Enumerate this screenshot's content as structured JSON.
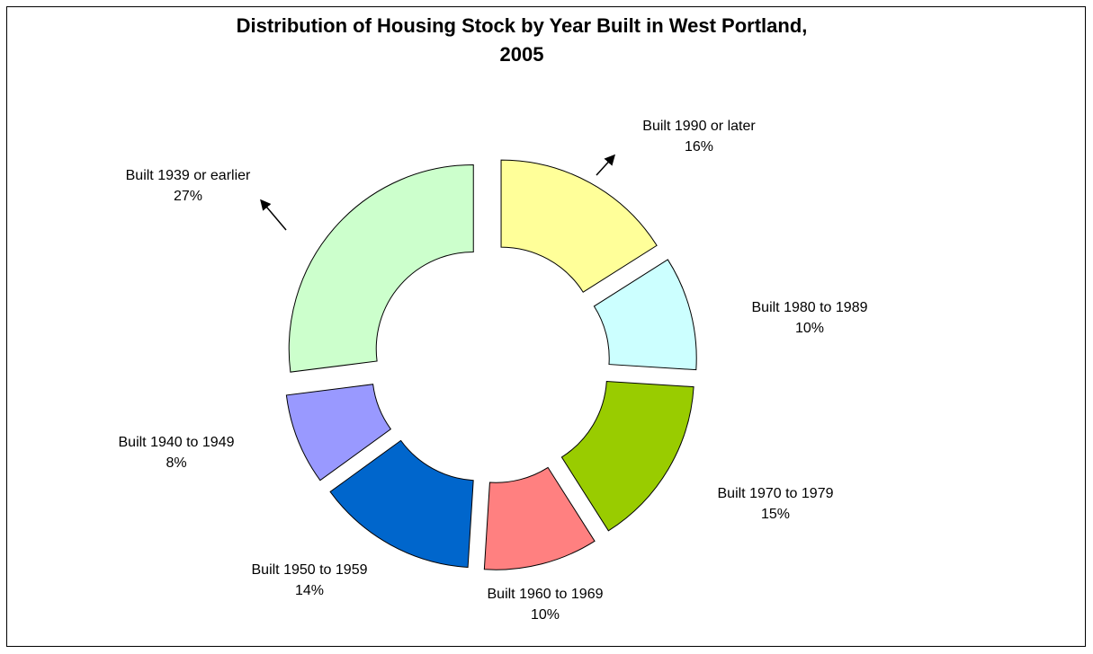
{
  "chart_data": {
    "type": "pie",
    "title": "Distribution of Housing Stock by Year Built in West Portland, 2005",
    "title_lines": [
      "Distribution of Housing Stock by Year Built in West Portland,",
      "2005"
    ],
    "categories": [
      "Built 1990 or later",
      "Built 1980 to 1989",
      "Built 1970 to 1979",
      "Built 1960 to 1969",
      "Built 1950 to 1959",
      "Built 1940 to 1949",
      "Built 1939 or earlier"
    ],
    "values": [
      16,
      10,
      15,
      10,
      14,
      8,
      27
    ],
    "value_labels": [
      "16%",
      "10%",
      "15%",
      "10%",
      "14%",
      "8%",
      "27%"
    ],
    "colors": [
      "#ffff99",
      "#ccffff",
      "#99cc00",
      "#ff8080",
      "#0066cc",
      "#9999ff",
      "#ccffcc"
    ]
  }
}
